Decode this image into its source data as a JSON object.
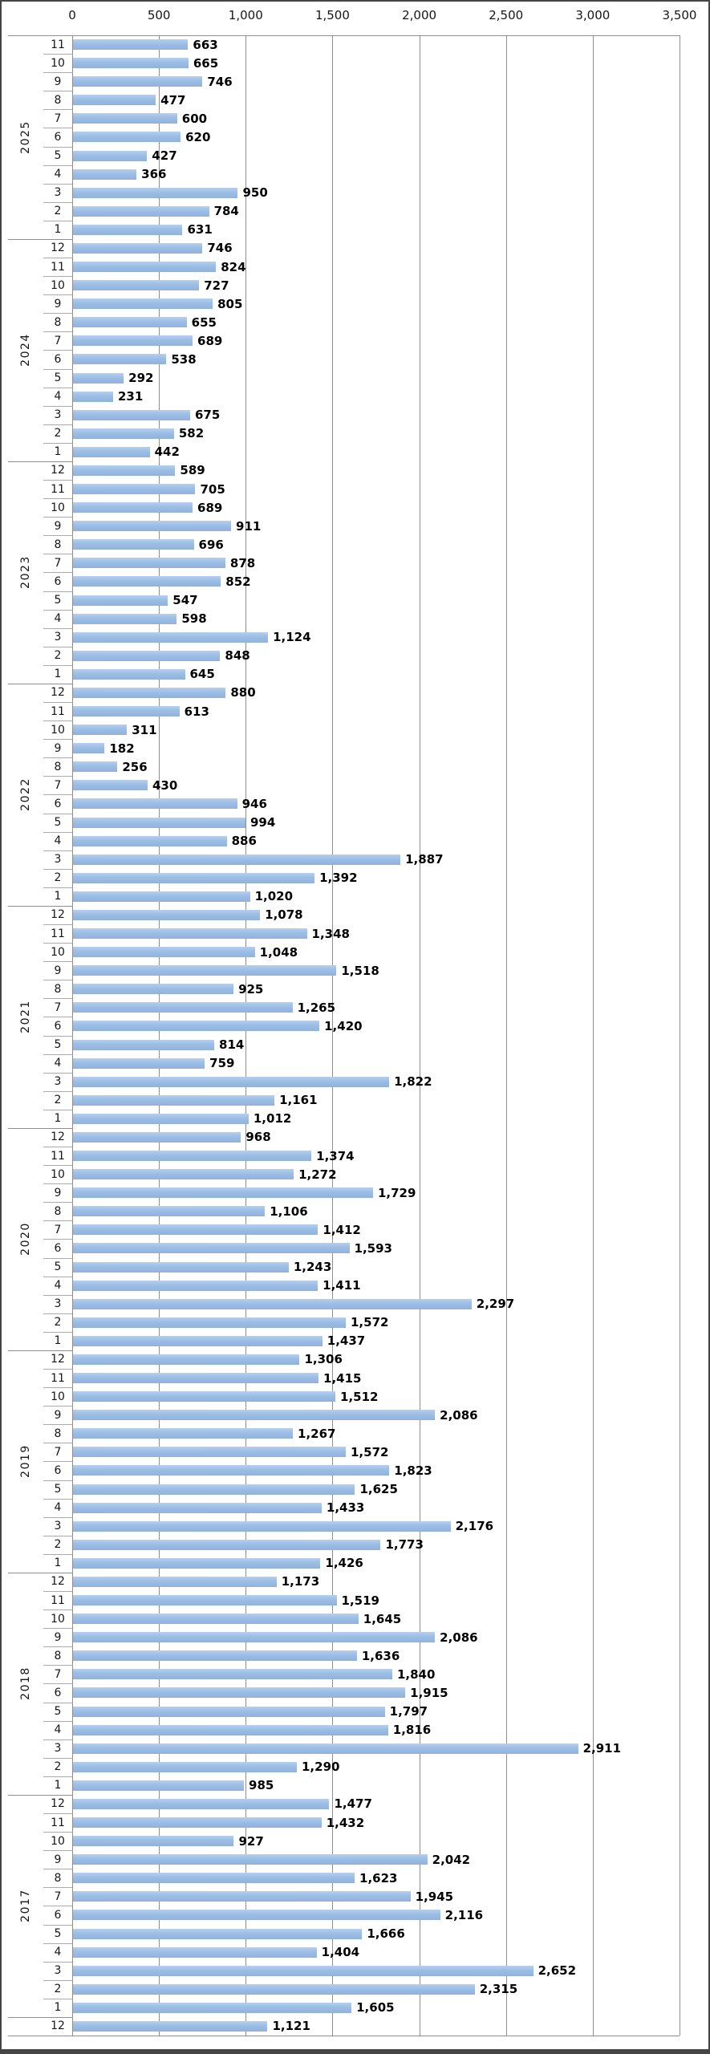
{
  "colors": {
    "bar": "#9cbde5",
    "gridline": "#8e8e8e",
    "separator": "#ababab",
    "frame": "#454545"
  },
  "chart_data": {
    "type": "bar",
    "orientation": "horizontal",
    "title": "",
    "legend": "none",
    "grid": "vertical",
    "x_axis": {
      "position": "top",
      "min": 0,
      "max": 3500,
      "ticks": [
        {
          "value": 0,
          "label": "0"
        },
        {
          "value": 500,
          "label": "500"
        },
        {
          "value": 1000,
          "label": "1,000"
        },
        {
          "value": 1500,
          "label": "1,500"
        },
        {
          "value": 2000,
          "label": "2,000"
        },
        {
          "value": 2500,
          "label": "2,500"
        },
        {
          "value": 3000,
          "label": "3,000"
        },
        {
          "value": 3500,
          "label": "3,500"
        }
      ]
    },
    "y_axis": {
      "levels": [
        "month",
        "year"
      ]
    },
    "groups": [
      {
        "year": "2025",
        "rows": [
          {
            "month": "11",
            "value": 663,
            "label": "663"
          },
          {
            "month": "10",
            "value": 665,
            "label": "665"
          },
          {
            "month": "9",
            "value": 746,
            "label": "746"
          },
          {
            "month": "8",
            "value": 477,
            "label": "477"
          },
          {
            "month": "7",
            "value": 600,
            "label": "600"
          },
          {
            "month": "6",
            "value": 620,
            "label": "620"
          },
          {
            "month": "5",
            "value": 427,
            "label": "427"
          },
          {
            "month": "4",
            "value": 366,
            "label": "366"
          },
          {
            "month": "3",
            "value": 950,
            "label": "950"
          },
          {
            "month": "2",
            "value": 784,
            "label": "784"
          },
          {
            "month": "1",
            "value": 631,
            "label": "631"
          }
        ]
      },
      {
        "year": "2024",
        "rows": [
          {
            "month": "12",
            "value": 746,
            "label": "746"
          },
          {
            "month": "11",
            "value": 824,
            "label": "824"
          },
          {
            "month": "10",
            "value": 727,
            "label": "727"
          },
          {
            "month": "9",
            "value": 805,
            "label": "805"
          },
          {
            "month": "8",
            "value": 655,
            "label": "655"
          },
          {
            "month": "7",
            "value": 689,
            "label": "689"
          },
          {
            "month": "6",
            "value": 538,
            "label": "538"
          },
          {
            "month": "5",
            "value": 292,
            "label": "292"
          },
          {
            "month": "4",
            "value": 231,
            "label": "231"
          },
          {
            "month": "3",
            "value": 675,
            "label": "675"
          },
          {
            "month": "2",
            "value": 582,
            "label": "582"
          },
          {
            "month": "1",
            "value": 442,
            "label": "442"
          }
        ]
      },
      {
        "year": "2023",
        "rows": [
          {
            "month": "12",
            "value": 589,
            "label": "589"
          },
          {
            "month": "11",
            "value": 705,
            "label": "705"
          },
          {
            "month": "10",
            "value": 689,
            "label": "689"
          },
          {
            "month": "9",
            "value": 911,
            "label": "911"
          },
          {
            "month": "8",
            "value": 696,
            "label": "696"
          },
          {
            "month": "7",
            "value": 878,
            "label": "878"
          },
          {
            "month": "6",
            "value": 852,
            "label": "852"
          },
          {
            "month": "5",
            "value": 547,
            "label": "547"
          },
          {
            "month": "4",
            "value": 598,
            "label": "598"
          },
          {
            "month": "3",
            "value": 1124,
            "label": "1,124"
          },
          {
            "month": "2",
            "value": 848,
            "label": "848"
          },
          {
            "month": "1",
            "value": 645,
            "label": "645"
          }
        ]
      },
      {
        "year": "2022",
        "rows": [
          {
            "month": "12",
            "value": 880,
            "label": "880"
          },
          {
            "month": "11",
            "value": 613,
            "label": "613"
          },
          {
            "month": "10",
            "value": 311,
            "label": "311"
          },
          {
            "month": "9",
            "value": 182,
            "label": "182"
          },
          {
            "month": "8",
            "value": 256,
            "label": "256"
          },
          {
            "month": "7",
            "value": 430,
            "label": "430"
          },
          {
            "month": "6",
            "value": 946,
            "label": "946"
          },
          {
            "month": "5",
            "value": 994,
            "label": "994"
          },
          {
            "month": "4",
            "value": 886,
            "label": "886"
          },
          {
            "month": "3",
            "value": 1887,
            "label": "1,887"
          },
          {
            "month": "2",
            "value": 1392,
            "label": "1,392"
          },
          {
            "month": "1",
            "value": 1020,
            "label": "1,020"
          }
        ]
      },
      {
        "year": "2021",
        "rows": [
          {
            "month": "12",
            "value": 1078,
            "label": "1,078"
          },
          {
            "month": "11",
            "value": 1348,
            "label": "1,348"
          },
          {
            "month": "10",
            "value": 1048,
            "label": "1,048"
          },
          {
            "month": "9",
            "value": 1518,
            "label": "1,518"
          },
          {
            "month": "8",
            "value": 925,
            "label": "925"
          },
          {
            "month": "7",
            "value": 1265,
            "label": "1,265"
          },
          {
            "month": "6",
            "value": 1420,
            "label": "1,420"
          },
          {
            "month": "5",
            "value": 814,
            "label": "814"
          },
          {
            "month": "4",
            "value": 759,
            "label": "759"
          },
          {
            "month": "3",
            "value": 1822,
            "label": "1,822"
          },
          {
            "month": "2",
            "value": 1161,
            "label": "1,161"
          },
          {
            "month": "1",
            "value": 1012,
            "label": "1,012"
          }
        ]
      },
      {
        "year": "2020",
        "rows": [
          {
            "month": "12",
            "value": 968,
            "label": "968"
          },
          {
            "month": "11",
            "value": 1374,
            "label": "1,374"
          },
          {
            "month": "10",
            "value": 1272,
            "label": "1,272"
          },
          {
            "month": "9",
            "value": 1729,
            "label": "1,729"
          },
          {
            "month": "8",
            "value": 1106,
            "label": "1,106"
          },
          {
            "month": "7",
            "value": 1412,
            "label": "1,412"
          },
          {
            "month": "6",
            "value": 1593,
            "label": "1,593"
          },
          {
            "month": "5",
            "value": 1243,
            "label": "1,243"
          },
          {
            "month": "4",
            "value": 1411,
            "label": "1,411"
          },
          {
            "month": "3",
            "value": 2297,
            "label": "2,297"
          },
          {
            "month": "2",
            "value": 1572,
            "label": "1,572"
          },
          {
            "month": "1",
            "value": 1437,
            "label": "1,437"
          }
        ]
      },
      {
        "year": "2019",
        "rows": [
          {
            "month": "12",
            "value": 1306,
            "label": "1,306"
          },
          {
            "month": "11",
            "value": 1415,
            "label": "1,415"
          },
          {
            "month": "10",
            "value": 1512,
            "label": "1,512"
          },
          {
            "month": "9",
            "value": 2086,
            "label": "2,086"
          },
          {
            "month": "8",
            "value": 1267,
            "label": "1,267"
          },
          {
            "month": "7",
            "value": 1572,
            "label": "1,572"
          },
          {
            "month": "6",
            "value": 1823,
            "label": "1,823"
          },
          {
            "month": "5",
            "value": 1625,
            "label": "1,625"
          },
          {
            "month": "4",
            "value": 1433,
            "label": "1,433"
          },
          {
            "month": "3",
            "value": 2176,
            "label": "2,176"
          },
          {
            "month": "2",
            "value": 1773,
            "label": "1,773"
          },
          {
            "month": "1",
            "value": 1426,
            "label": "1,426"
          }
        ]
      },
      {
        "year": "2018",
        "rows": [
          {
            "month": "12",
            "value": 1173,
            "label": "1,173"
          },
          {
            "month": "11",
            "value": 1519,
            "label": "1,519"
          },
          {
            "month": "10",
            "value": 1645,
            "label": "1,645"
          },
          {
            "month": "9",
            "value": 2086,
            "label": "2,086"
          },
          {
            "month": "8",
            "value": 1636,
            "label": "1,636"
          },
          {
            "month": "7",
            "value": 1840,
            "label": "1,840"
          },
          {
            "month": "6",
            "value": 1915,
            "label": "1,915"
          },
          {
            "month": "5",
            "value": 1797,
            "label": "1,797"
          },
          {
            "month": "4",
            "value": 1816,
            "label": "1,816"
          },
          {
            "month": "3",
            "value": 2911,
            "label": "2,911"
          },
          {
            "month": "2",
            "value": 1290,
            "label": "1,290"
          },
          {
            "month": "1",
            "value": 985,
            "label": "985"
          }
        ]
      },
      {
        "year": "2017",
        "rows": [
          {
            "month": "12",
            "value": 1477,
            "label": "1,477"
          },
          {
            "month": "11",
            "value": 1432,
            "label": "1,432"
          },
          {
            "month": "10",
            "value": 927,
            "label": "927"
          },
          {
            "month": "9",
            "value": 2042,
            "label": "2,042"
          },
          {
            "month": "8",
            "value": 1623,
            "label": "1,623"
          },
          {
            "month": "7",
            "value": 1945,
            "label": "1,945"
          },
          {
            "month": "6",
            "value": 2116,
            "label": "2,116"
          },
          {
            "month": "5",
            "value": 1666,
            "label": "1,666"
          },
          {
            "month": "4",
            "value": 1404,
            "label": "1,404"
          },
          {
            "month": "3",
            "value": 2652,
            "label": "2,652"
          },
          {
            "month": "2",
            "value": 2315,
            "label": "2,315"
          },
          {
            "month": "1",
            "value": 1605,
            "label": "1,605"
          }
        ]
      },
      {
        "year": "",
        "rows": [
          {
            "month": "12",
            "value": 1121,
            "label": "1,121"
          }
        ]
      }
    ]
  }
}
